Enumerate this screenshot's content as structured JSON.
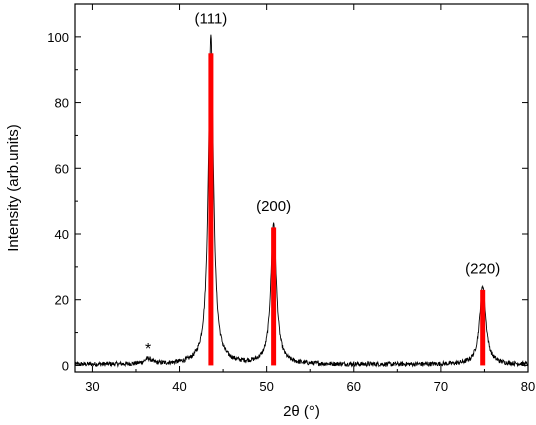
{
  "chart_data": {
    "type": "line",
    "title": "",
    "xlabel": "2θ (°)",
    "ylabel": "Intensity (arb.units)",
    "xlim": [
      28,
      80
    ],
    "ylim": [
      -2,
      110
    ],
    "x_ticks": [
      30,
      40,
      50,
      60,
      70,
      80
    ],
    "y_ticks": [
      0,
      20,
      40,
      60,
      80,
      100
    ],
    "grid": false,
    "legend": "none",
    "series": [
      {
        "line_color": "#000000",
        "peaks": [
          {
            "x": 36.4,
            "height": 1.6,
            "width": 0.5
          },
          {
            "x": 43.6,
            "height": 100.5,
            "width": 0.35
          },
          {
            "x": 50.8,
            "height": 43.0,
            "width": 0.38
          },
          {
            "x": 74.8,
            "height": 24.0,
            "width": 0.42
          }
        ],
        "baseline": 0.3,
        "noise": 0.7
      }
    ],
    "reference_bars": {
      "color": "#ff0000",
      "bars": [
        {
          "x": 43.6,
          "value": 95
        },
        {
          "x": 50.8,
          "value": 42
        },
        {
          "x": 74.8,
          "value": 23
        }
      ]
    },
    "annotations": [
      {
        "text": "(111)",
        "x": 43.6,
        "y": 104
      },
      {
        "text": "(200)",
        "x": 50.8,
        "y": 47
      },
      {
        "text": "(220)",
        "x": 74.8,
        "y": 28
      },
      {
        "text": "*",
        "x": 36.4,
        "y": 3.5
      }
    ]
  }
}
